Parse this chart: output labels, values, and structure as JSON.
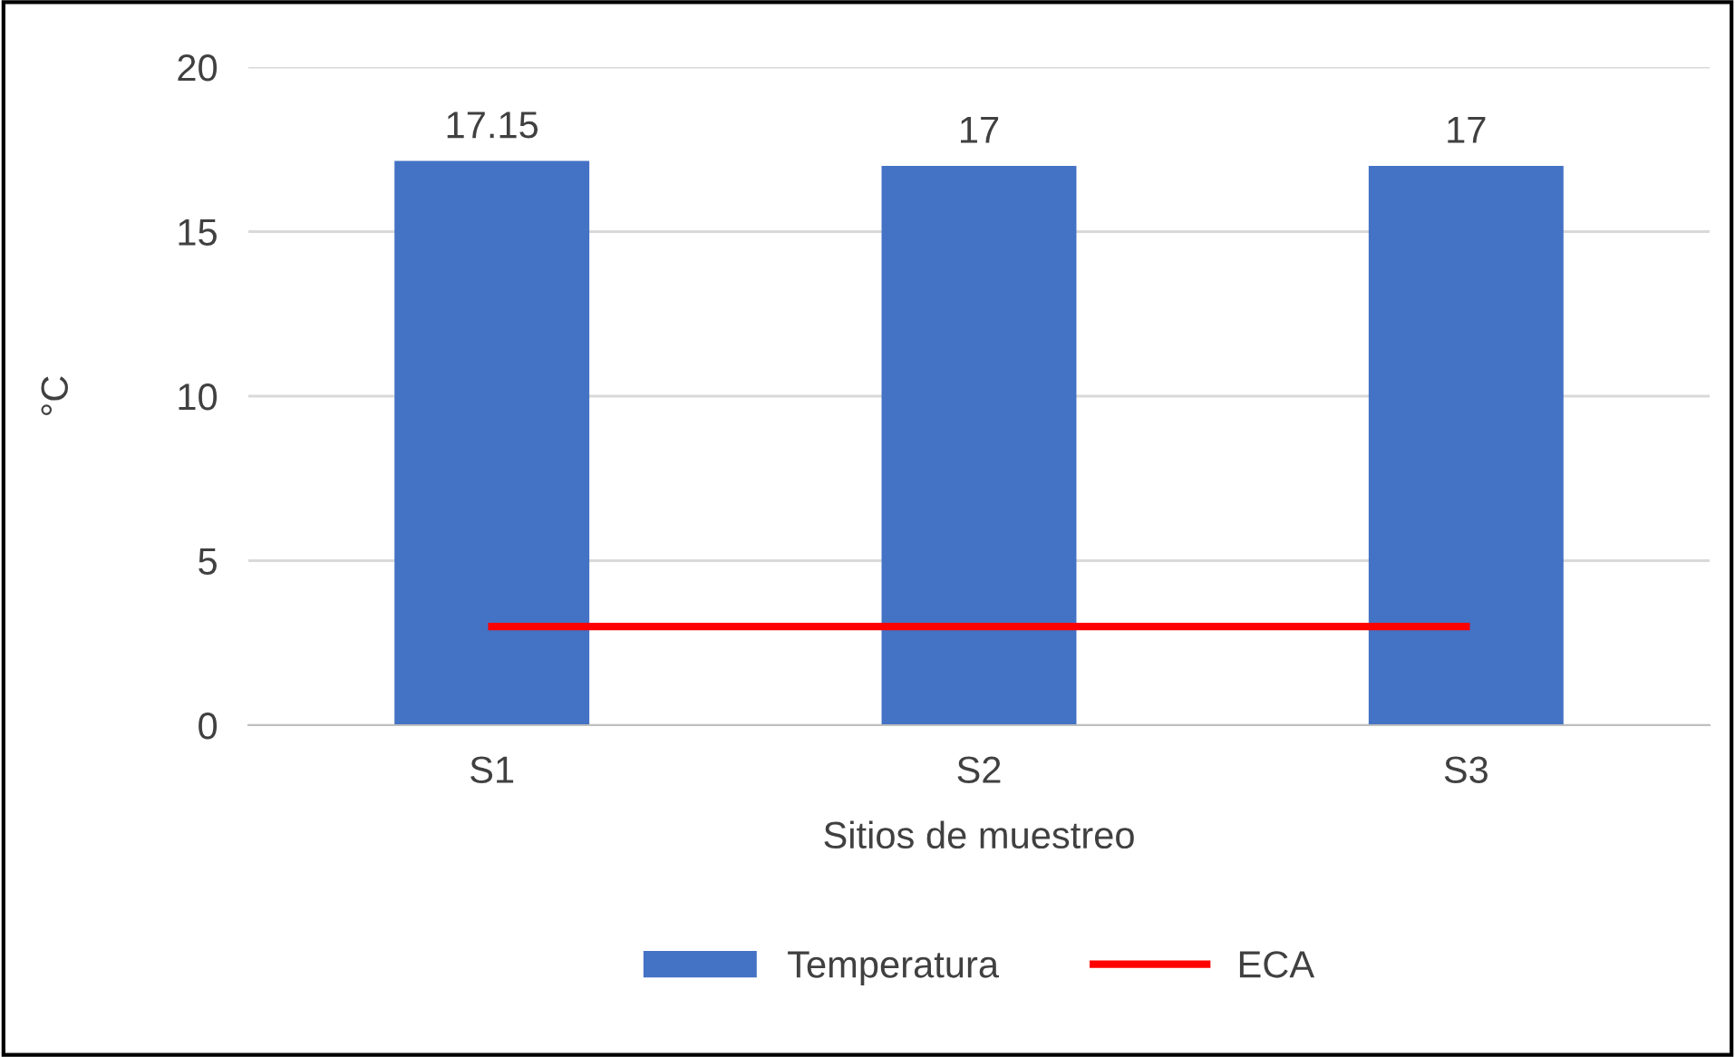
{
  "chart_data": {
    "type": "bar",
    "xlabel": "Sitios de muestreo",
    "ylabel": "°C",
    "categories": [
      "S1",
      "S2",
      "S3"
    ],
    "series": [
      {
        "name": "Temperatura",
        "color": "#4472c4",
        "values": [
          17.15,
          17,
          17
        ],
        "data_labels": true
      },
      {
        "name": "ECA",
        "type": "line",
        "color": "#ff0000",
        "values": [
          3,
          3,
          3
        ]
      }
    ],
    "ylim": [
      0,
      20
    ],
    "yticks": [
      0,
      5,
      10,
      15,
      20
    ],
    "grid": "y",
    "legend": "bottom",
    "marker": "none",
    "line_style": "solid"
  }
}
